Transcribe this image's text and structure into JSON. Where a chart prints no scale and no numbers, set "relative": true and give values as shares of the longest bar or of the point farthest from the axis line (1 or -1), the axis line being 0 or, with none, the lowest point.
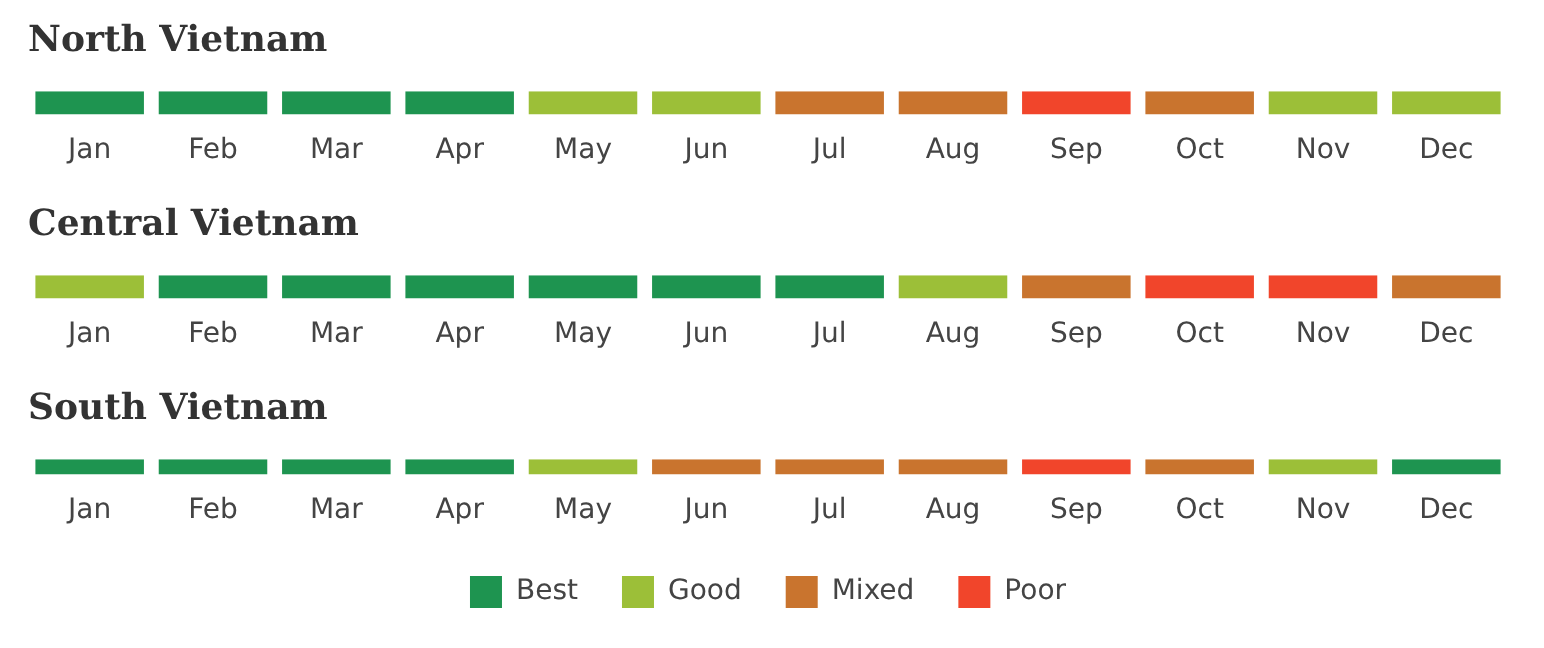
{
  "chart_data": [
    {
      "type": "bar",
      "title": "North Vietnam",
      "categories": [
        "Jan",
        "Feb",
        "Mar",
        "Apr",
        "May",
        "Jun",
        "Jul",
        "Aug",
        "Sep",
        "Oct",
        "Nov",
        "Dec"
      ],
      "stacked": true,
      "relative": true,
      "legend": false,
      "series": [
        {
          "color": "#1e9450",
          "values": [
            1,
            1,
            1,
            1,
            null,
            null,
            null,
            null,
            null,
            null,
            null,
            null
          ]
        },
        {
          "color": "#9cbf38",
          "values": [
            null,
            null,
            null,
            null,
            1,
            1,
            null,
            null,
            null,
            null,
            1,
            1
          ]
        },
        {
          "color": "#c9742e",
          "values": [
            null,
            null,
            null,
            null,
            null,
            null,
            1,
            1,
            null,
            1,
            null,
            null
          ]
        },
        {
          "color": "#f1452b",
          "values": [
            null,
            null,
            null,
            null,
            null,
            null,
            null,
            null,
            1,
            null,
            null,
            null
          ]
        }
      ]
    },
    {
      "type": "bar",
      "title": "Central Vietnam",
      "categories": [
        "Jan",
        "Feb",
        "Mar",
        "Apr",
        "May",
        "Jun",
        "Jul",
        "Aug",
        "Sep",
        "Oct",
        "Nov",
        "Dec"
      ],
      "stacked": true,
      "relative": true,
      "legend": false,
      "series": [
        {
          "color": "#1e9450",
          "values": [
            null,
            1,
            1,
            1,
            1,
            1,
            1,
            null,
            null,
            null,
            null,
            null
          ]
        },
        {
          "color": "#9cbf38",
          "values": [
            1,
            null,
            null,
            null,
            null,
            null,
            null,
            1,
            null,
            null,
            null,
            null
          ]
        },
        {
          "color": "#c9742e",
          "values": [
            null,
            null,
            null,
            null,
            null,
            null,
            null,
            null,
            1,
            null,
            null,
            1
          ]
        },
        {
          "color": "#f1452b",
          "values": [
            null,
            null,
            null,
            null,
            null,
            null,
            null,
            null,
            null,
            1,
            1,
            null
          ]
        }
      ]
    },
    {
      "type": "bar",
      "title": "South Vietnam",
      "categories": [
        "Jan",
        "Feb",
        "Mar",
        "Apr",
        "May",
        "Jun",
        "Jul",
        "Aug",
        "Sep",
        "Oct",
        "Nov",
        "Dec"
      ],
      "stacked": true,
      "relative": true,
      "legend": "bottom",
      "series": [
        {
          "name": "Best",
          "color": "#1e9450",
          "values": [
            1,
            1,
            1,
            1,
            null,
            null,
            null,
            null,
            null,
            null,
            null,
            1
          ]
        },
        {
          "name": "Good",
          "color": "#9cbf38",
          "values": [
            null,
            null,
            null,
            null,
            1,
            null,
            null,
            null,
            null,
            null,
            1,
            null
          ]
        },
        {
          "name": "Mixed",
          "color": "#c9742e",
          "values": [
            null,
            null,
            null,
            null,
            null,
            1,
            1,
            1,
            null,
            1,
            null,
            null
          ]
        },
        {
          "name": "Poor",
          "color": "#f1452b",
          "values": [
            null,
            null,
            null,
            null,
            null,
            null,
            null,
            null,
            1,
            null,
            null,
            null
          ]
        }
      ]
    }
  ]
}
